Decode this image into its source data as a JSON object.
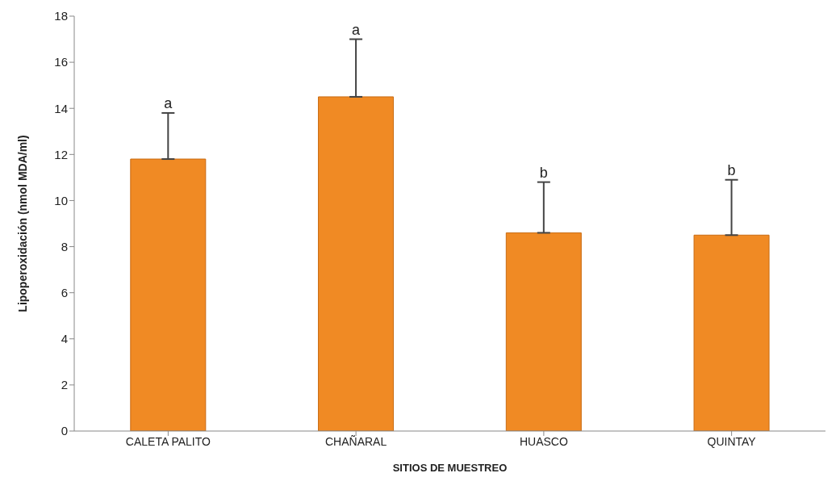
{
  "chart_data": {
    "type": "bar",
    "xlabel": "SITIOS DE MUESTREO",
    "ylabel": "Lipoperoxidación  (nmol MDA/ml)",
    "categories": [
      "CALETA PALITO",
      "CHAÑARAL",
      "HUASCO",
      "QUINTAY"
    ],
    "values": [
      11.8,
      14.5,
      8.6,
      8.5
    ],
    "errors": [
      [
        11.8,
        13.8
      ],
      [
        14.5,
        17.0
      ],
      [
        8.6,
        10.8
      ],
      [
        8.5,
        10.9
      ]
    ],
    "color": "#f08a24",
    "ylim": [
      0,
      18
    ],
    "yticks": [
      0,
      2,
      4,
      6,
      8,
      10,
      12,
      14,
      16,
      18
    ],
    "grid": false,
    "annotations": [
      "a",
      "a",
      "b",
      "b"
    ]
  }
}
